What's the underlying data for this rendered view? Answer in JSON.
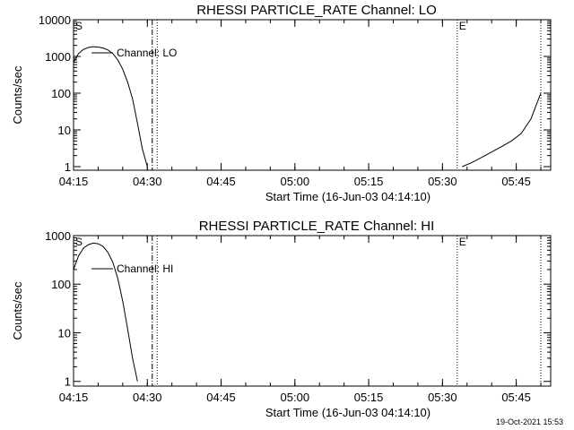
{
  "footer": {
    "timestamp": "19-Oct-2021 15:53"
  },
  "chart_data": [
    {
      "type": "line",
      "title": "RHESSI PARTICLE_RATE Channel: LO",
      "xlabel": "Start Time (16-Jun-03 04:14:10)",
      "ylabel": "Counts/sec",
      "yscale": "log",
      "xlim": [
        "04:15",
        "05:52"
      ],
      "ylim": [
        0.8,
        10000
      ],
      "xticks": [
        "04:15",
        "04:30",
        "04:45",
        "05:00",
        "05:15",
        "05:30",
        "05:45"
      ],
      "yticks": [
        "10000",
        "1000",
        "100",
        "10",
        "1"
      ],
      "legend": {
        "label": "Channel: LO",
        "placement": "top-left"
      },
      "markers": [
        {
          "time": "04:31",
          "style": "dash-dot"
        },
        {
          "time": "04:32",
          "style": "dotted"
        },
        {
          "time": "05:33",
          "style": "dotted",
          "label": "E"
        },
        {
          "time": "05:50",
          "style": "dotted"
        }
      ],
      "corner_label": "S",
      "series": [
        {
          "values_segments": [
            [
              [
                "04:15",
                700
              ],
              [
                "04:16",
                1200
              ],
              [
                "04:17",
                1550
              ],
              [
                "04:18",
                1750
              ],
              [
                "04:19",
                1850
              ],
              [
                "04:20",
                1800
              ],
              [
                "04:21",
                1700
              ],
              [
                "04:22",
                1500
              ],
              [
                "04:23",
                1200
              ],
              [
                "04:24",
                800
              ],
              [
                "04:25",
                450
              ],
              [
                "04:26",
                200
              ],
              [
                "04:27",
                70
              ],
              [
                "04:28",
                15
              ],
              [
                "04:29",
                3
              ],
              [
                "04:30",
                1
              ]
            ],
            [
              [
                "05:34",
                1
              ],
              [
                "05:36",
                1.3
              ],
              [
                "05:38",
                1.8
              ],
              [
                "05:40",
                2.5
              ],
              [
                "05:42",
                3.5
              ],
              [
                "05:44",
                5
              ],
              [
                "05:46",
                8
              ],
              [
                "05:48",
                20
              ],
              [
                "05:49",
                45
              ],
              [
                "05:50",
                100
              ]
            ]
          ]
        }
      ]
    },
    {
      "type": "line",
      "title": "RHESSI PARTICLE_RATE Channel: HI",
      "xlabel": "Start Time (16-Jun-03 04:14:10)",
      "ylabel": "Counts/sec",
      "yscale": "log",
      "xlim": [
        "04:15",
        "05:52"
      ],
      "ylim": [
        0.8,
        1000
      ],
      "xticks": [
        "04:15",
        "04:30",
        "04:45",
        "05:00",
        "05:15",
        "05:30",
        "05:45"
      ],
      "yticks": [
        "1000",
        "100",
        "10",
        "1"
      ],
      "legend": {
        "label": "Channel: HI",
        "placement": "top-left"
      },
      "markers": [
        {
          "time": "04:31",
          "style": "dash-dot"
        },
        {
          "time": "04:32",
          "style": "dotted"
        },
        {
          "time": "05:33",
          "style": "dotted",
          "label": "E"
        },
        {
          "time": "05:50",
          "style": "dotted"
        }
      ],
      "corner_label": "S",
      "series": [
        {
          "values_segments": [
            [
              [
                "04:15",
                200
              ],
              [
                "04:16",
                380
              ],
              [
                "04:17",
                550
              ],
              [
                "04:18",
                650
              ],
              [
                "04:19",
                700
              ],
              [
                "04:20",
                680
              ],
              [
                "04:21",
                600
              ],
              [
                "04:22",
                450
              ],
              [
                "04:23",
                280
              ],
              [
                "04:24",
                130
              ],
              [
                "04:25",
                45
              ],
              [
                "04:26",
                12
              ],
              [
                "04:27",
                3
              ],
              [
                "04:28",
                1
              ]
            ]
          ]
        }
      ]
    }
  ]
}
